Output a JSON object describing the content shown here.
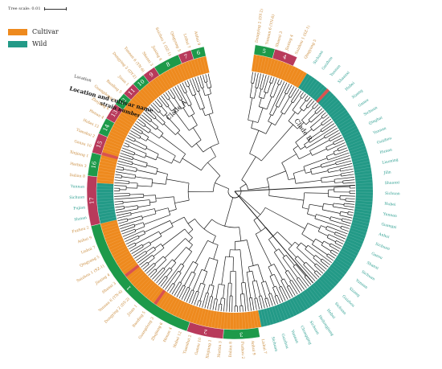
{
  "scale": {
    "label": "Tree scale: 0.01"
  },
  "legend": [
    {
      "label": "Cultivar",
      "color": "#ee8a1e"
    },
    {
      "label": "Wild",
      "color": "#239a87"
    }
  ],
  "colors": {
    "cultivar": "#ee8a1e",
    "wild": "#239a87",
    "group_red": "#b83a5b",
    "group_green": "#1d9a4a",
    "wild_text": "#2a9d8f",
    "cultivar_text": "#c98b3c",
    "branch": "#1a1a1a"
  },
  "ring_headers": {
    "location": "Location and cultivar name",
    "strain": "strain number",
    "geo": "Location"
  },
  "clades": [
    "Clade A",
    "Clade B"
  ],
  "groups": [
    "5",
    "4",
    "3",
    "2",
    "1",
    "17",
    "16",
    "15",
    "14",
    "13",
    "12",
    "11",
    "10",
    "9",
    "8",
    "7",
    "6"
  ],
  "tree": {
    "leaf_count": 260,
    "start_deg": 8,
    "span_deg": 340,
    "seed": 17
  },
  "cultivar_ranges": [
    [
      0,
      18
    ],
    [
      123,
      190
    ],
    [
      203,
      260
    ]
  ],
  "wild_ranges": [
    [
      18,
      123
    ],
    [
      190,
      203
    ]
  ],
  "highlight_leaves": [
    26,
    158,
    171,
    212
  ],
  "group_spans": [
    {
      "label": "5",
      "start": 0,
      "end": 6,
      "color": "#1d9a4a"
    },
    {
      "label": "4",
      "start": 6,
      "end": 13,
      "color": "#b83a5b"
    },
    {
      "label": "3",
      "start": 124,
      "end": 135,
      "color": "#1d9a4a"
    },
    {
      "label": "2",
      "start": 135,
      "end": 146,
      "color": "#b83a5b"
    },
    {
      "label": "1",
      "start": 146,
      "end": 190,
      "color": "#1d9a4a"
    },
    {
      "label": "17",
      "start": 190,
      "end": 205,
      "color": "#b83a5b"
    },
    {
      "label": "16",
      "start": 205,
      "end": 212,
      "color": "#1d9a4a"
    },
    {
      "label": "15",
      "start": 212,
      "end": 218,
      "color": "#b83a5b"
    },
    {
      "label": "14",
      "start": 218,
      "end": 223,
      "color": "#1d9a4a"
    },
    {
      "label": "13",
      "start": 223,
      "end": 228,
      "color": "#b83a5b"
    },
    {
      "label": "12",
      "start": 228,
      "end": 232,
      "color": "#1d9a4a"
    },
    {
      "label": "11",
      "start": 232,
      "end": 236,
      "color": "#b83a5b"
    },
    {
      "label": "10",
      "start": 236,
      "end": 240,
      "color": "#1d9a4a"
    },
    {
      "label": "9",
      "start": 240,
      "end": 244,
      "color": "#b83a5b"
    },
    {
      "label": "8",
      "start": 244,
      "end": 252,
      "color": "#1d9a4a"
    },
    {
      "label": "7",
      "start": 252,
      "end": 256,
      "color": "#b83a5b"
    },
    {
      "label": "6",
      "start": 256,
      "end": 260,
      "color": "#1d9a4a"
    }
  ],
  "outer_labels": {
    "wild": [
      "Sichuan",
      "Guizhou",
      "Yunnan",
      "Shaanxi",
      "Hubei",
      "Xizang",
      "Gansu",
      "Sichuan",
      "Qinghai",
      "Yunnan",
      "Guizhou",
      "Hunan",
      "Liaoning",
      "Jilin",
      "Shaanxi",
      "Sichuan",
      "Hubei",
      "Yunnan",
      "Guangxi",
      "Anhui",
      "Sichuan",
      "Gansu",
      "Shanxi",
      "Sichuan",
      "Yunnan",
      "Xizang",
      "Guizhou",
      "Sichuan",
      "Hebei",
      "Heilongjiang",
      "Sichuan",
      "Chongqing",
      "Yunnan",
      "Guizhou",
      "Sichuan",
      "Hunan",
      "Fujian",
      "Sichuan",
      "Yunnan",
      "Shaanxi"
    ],
    "cultivar": [
      "Dongying 2 (DY-2)",
      "Yunnan 6 (YN-6)",
      "Shanxi 3",
      "Jiaxing 4",
      "Suizhou 1 (SZ-1)",
      "Qingyang 5",
      "Lishui 7",
      "Anhui 9",
      "Fuzhou 2",
      "Dalian 8",
      "Harbin 3",
      "Xinjiang 1",
      "Gansu 10",
      "Tianshui 2",
      "Hubei 12",
      "Henan 4",
      "Zhejiang 6",
      "Guangdong 3",
      "Baoding 5",
      "Jinan 1"
    ]
  }
}
